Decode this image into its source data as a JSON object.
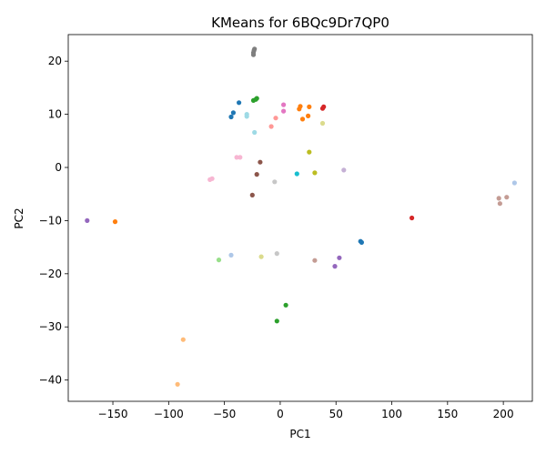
{
  "chart_data": {
    "type": "scatter",
    "title": "KMeans for 6BQc9Dr7QP0",
    "xlabel": "PC1",
    "ylabel": "PC2",
    "xlim": [
      -190,
      226
    ],
    "ylim": [
      -44,
      25
    ],
    "xticks": [
      -150,
      -100,
      -50,
      0,
      50,
      100,
      150,
      200
    ],
    "yticks": [
      -40,
      -30,
      -20,
      -10,
      0,
      10,
      20
    ],
    "xtick_labels": [
      "−150",
      "−100",
      "−50",
      "0",
      "50",
      "100",
      "150",
      "200"
    ],
    "ytick_labels": [
      "−40",
      "−30",
      "−20",
      "−10",
      "0",
      "10",
      "20"
    ],
    "grid": false,
    "legend": "none",
    "points": [
      {
        "x": -24,
        "y": 21.2,
        "color": "#7f7f7f"
      },
      {
        "x": -24,
        "y": 21.6,
        "color": "#7f7f7f"
      },
      {
        "x": -23.5,
        "y": 22.0,
        "color": "#7f7f7f"
      },
      {
        "x": -23,
        "y": 22.3,
        "color": "#7f7f7f"
      },
      {
        "x": -44,
        "y": 9.5,
        "color": "#1f77b4"
      },
      {
        "x": -42,
        "y": 10.3,
        "color": "#1f77b4"
      },
      {
        "x": -37,
        "y": 12.2,
        "color": "#1f77b4"
      },
      {
        "x": -24,
        "y": 12.6,
        "color": "#2ca02c"
      },
      {
        "x": -22,
        "y": 12.8,
        "color": "#2ca02c"
      },
      {
        "x": -21,
        "y": 13.0,
        "color": "#2ca02c"
      },
      {
        "x": -30,
        "y": 10.0,
        "color": "#9edae5"
      },
      {
        "x": -30,
        "y": 9.6,
        "color": "#9edae5"
      },
      {
        "x": -23,
        "y": 6.6,
        "color": "#9edae5"
      },
      {
        "x": 3,
        "y": 11.8,
        "color": "#e377c2"
      },
      {
        "x": 3,
        "y": 10.6,
        "color": "#e377c2"
      },
      {
        "x": 17,
        "y": 11.0,
        "color": "#ff7f0e"
      },
      {
        "x": 18,
        "y": 11.5,
        "color": "#ff7f0e"
      },
      {
        "x": 26,
        "y": 11.4,
        "color": "#ff7f0e"
      },
      {
        "x": 25,
        "y": 9.7,
        "color": "#ff7f0e"
      },
      {
        "x": 20,
        "y": 9.1,
        "color": "#ff7f0e"
      },
      {
        "x": 38,
        "y": 11.1,
        "color": "#d62728"
      },
      {
        "x": 39,
        "y": 11.4,
        "color": "#d62728"
      },
      {
        "x": 38,
        "y": 8.3,
        "color": "#dbdb8d"
      },
      {
        "x": -4,
        "y": 9.3,
        "color": "#ff9896"
      },
      {
        "x": -8,
        "y": 7.7,
        "color": "#ff9896"
      },
      {
        "x": 26,
        "y": 2.9,
        "color": "#bcbd22"
      },
      {
        "x": 31,
        "y": -1.0,
        "color": "#bcbd22"
      },
      {
        "x": 15,
        "y": -1.2,
        "color": "#17becf"
      },
      {
        "x": 57,
        "y": -0.5,
        "color": "#c5b0d5"
      },
      {
        "x": -18,
        "y": 1.0,
        "color": "#8c564b"
      },
      {
        "x": -21,
        "y": -1.3,
        "color": "#8c564b"
      },
      {
        "x": -25,
        "y": -5.2,
        "color": "#8c564b"
      },
      {
        "x": -39,
        "y": 1.9,
        "color": "#f7b6d2"
      },
      {
        "x": -36,
        "y": 1.9,
        "color": "#f7b6d2"
      },
      {
        "x": -63,
        "y": -2.3,
        "color": "#f7b6d2"
      },
      {
        "x": -61,
        "y": -2.1,
        "color": "#f7b6d2"
      },
      {
        "x": -5,
        "y": -2.7,
        "color": "#c7c7c7"
      },
      {
        "x": -173,
        "y": -10.0,
        "color": "#9467bd"
      },
      {
        "x": -148,
        "y": -10.2,
        "color": "#ff7f0e"
      },
      {
        "x": 118,
        "y": -9.5,
        "color": "#d62728"
      },
      {
        "x": 196,
        "y": -5.8,
        "color": "#c49c94"
      },
      {
        "x": 203,
        "y": -5.6,
        "color": "#c49c94"
      },
      {
        "x": 197,
        "y": -6.8,
        "color": "#c49c94"
      },
      {
        "x": 210,
        "y": -2.9,
        "color": "#aec7e8"
      },
      {
        "x": 72,
        "y": -13.9,
        "color": "#1f77b4"
      },
      {
        "x": 73,
        "y": -14.1,
        "color": "#1f77b4"
      },
      {
        "x": -55,
        "y": -17.4,
        "color": "#98df8a"
      },
      {
        "x": -44,
        "y": -16.5,
        "color": "#aec7e8"
      },
      {
        "x": -17,
        "y": -16.8,
        "color": "#dbdb8d"
      },
      {
        "x": -3,
        "y": -16.2,
        "color": "#c7c7c7"
      },
      {
        "x": 31,
        "y": -17.5,
        "color": "#c49c94"
      },
      {
        "x": 53,
        "y": -17.0,
        "color": "#9467bd"
      },
      {
        "x": 49,
        "y": -18.6,
        "color": "#9467bd"
      },
      {
        "x": 5,
        "y": -25.9,
        "color": "#2ca02c"
      },
      {
        "x": -3,
        "y": -28.9,
        "color": "#2ca02c"
      },
      {
        "x": -87,
        "y": -32.4,
        "color": "#ffbb78"
      },
      {
        "x": -92,
        "y": -40.8,
        "color": "#ffbb78"
      }
    ]
  }
}
